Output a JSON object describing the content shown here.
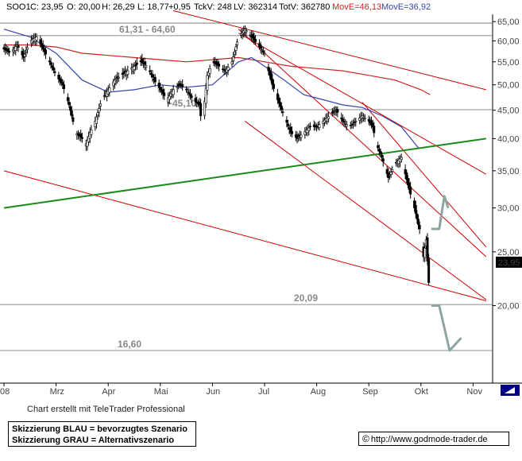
{
  "header": {
    "symbol": "SOO1",
    "close": "C: 23,95",
    "open": "O: 20,00",
    "high": "H: 26,29",
    "low": "L: 18,77",
    "change": "+0,95",
    "tickvol": "TckV: 248",
    "lastvol": "LV: 362314",
    "totvol": "TotV: 362780",
    "move_long": "MovE=46,13",
    "move_short": "MovE=36,92"
  },
  "credit": "Chart erstellt mit TeleTrader Professional",
  "legend": {
    "line1": "Skizzierung BLAU = bevorzugtes Szenario",
    "line2": "Skizzierung GRAU = Alternativszenario"
  },
  "url": "http://www.godmode-trader.de",
  "colors": {
    "up": "#ffffff",
    "down": "#000000",
    "grid": "#dddddd",
    "ma_long": "#cc2222",
    "ma_short": "#3344aa",
    "trend_red": "#cc0000",
    "trend_green": "#1a8a1a",
    "scenario_grey": "#8fa3a3",
    "price_tag": "#000000"
  },
  "chart_data": {
    "type": "candlestick",
    "title": "",
    "xlabel": "",
    "ylabel": "",
    "y_scale": "log",
    "ylim": [
      14.5,
      67
    ],
    "y_ticks": [
      20,
      25,
      30,
      35,
      40,
      45,
      50,
      55,
      60,
      65
    ],
    "y_tick_labels": [
      "20,00",
      "25,00",
      "30,00",
      "35,00",
      "40,00",
      "45,00",
      "50,00",
      "55,00",
      "60,00",
      "65,00"
    ],
    "x_labels": [
      "08",
      "Mrz",
      "Apr",
      "Mai",
      "Jun",
      "Jul",
      "Aug",
      "Sep",
      "Okt",
      "Nov"
    ],
    "x_label_day_index": [
      0,
      40,
      80,
      120,
      160,
      200,
      240,
      280,
      320,
      360
    ],
    "last_price_tag": "23,95",
    "last_price": 23.95,
    "levels": [
      {
        "label": "61,31 - 64,60",
        "value": 61.31
      },
      {
        "label": "",
        "value": 64.6
      },
      {
        "label": "~45,10",
        "value": 45.1
      },
      {
        "label": "20,09",
        "value": 20.09
      },
      {
        "label": "16,60",
        "value": 16.6
      }
    ],
    "close_path": [
      [
        0,
        58
      ],
      [
        5,
        57
      ],
      [
        10,
        59
      ],
      [
        15,
        56
      ],
      [
        20,
        60
      ],
      [
        25,
        61
      ],
      [
        30,
        58
      ],
      [
        35,
        55
      ],
      [
        40,
        52
      ],
      [
        45,
        50
      ],
      [
        50,
        46
      ],
      [
        55,
        41
      ],
      [
        60,
        40
      ],
      [
        62,
        38.5
      ],
      [
        66,
        41
      ],
      [
        70,
        43
      ],
      [
        75,
        47
      ],
      [
        80,
        49
      ],
      [
        85,
        51
      ],
      [
        90,
        52
      ],
      [
        95,
        53
      ],
      [
        100,
        54
      ],
      [
        105,
        55
      ],
      [
        110,
        54
      ],
      [
        115,
        51
      ],
      [
        120,
        49
      ],
      [
        125,
        47
      ],
      [
        130,
        49
      ],
      [
        135,
        50
      ],
      [
        140,
        49
      ],
      [
        145,
        47
      ],
      [
        150,
        46
      ],
      [
        152,
        42
      ],
      [
        156,
        52
      ],
      [
        160,
        55
      ],
      [
        165,
        54
      ],
      [
        170,
        53
      ],
      [
        175,
        55
      ],
      [
        180,
        61
      ],
      [
        185,
        63
      ],
      [
        190,
        61
      ],
      [
        195,
        59
      ],
      [
        200,
        57
      ],
      [
        203,
        53
      ],
      [
        206,
        50
      ],
      [
        210,
        47
      ],
      [
        215,
        44
      ],
      [
        220,
        41
      ],
      [
        225,
        40
      ],
      [
        230,
        41
      ],
      [
        235,
        42
      ],
      [
        240,
        42
      ],
      [
        245,
        43
      ],
      [
        250,
        44
      ],
      [
        255,
        45
      ],
      [
        260,
        43
      ],
      [
        265,
        42
      ],
      [
        270,
        43
      ],
      [
        275,
        44
      ],
      [
        280,
        43
      ],
      [
        283,
        42
      ],
      [
        286,
        39
      ],
      [
        290,
        37
      ],
      [
        295,
        34
      ],
      [
        300,
        36
      ],
      [
        305,
        37
      ],
      [
        310,
        33
      ],
      [
        315,
        30
      ],
      [
        318,
        28
      ],
      [
        320,
        27
      ],
      [
        322,
        24.5
      ],
      [
        324,
        26.3
      ],
      [
        326,
        22
      ],
      [
        327,
        20.5
      ],
      [
        328,
        23.95
      ]
    ],
    "series": [
      {
        "name": "MovE=46,13",
        "values": [
          [
            0,
            59
          ],
          [
            20,
            59
          ],
          [
            40,
            58.5
          ],
          [
            60,
            57
          ],
          [
            80,
            56.5
          ],
          [
            100,
            56
          ],
          [
            120,
            55.5
          ],
          [
            140,
            55
          ],
          [
            160,
            55.5
          ],
          [
            180,
            56
          ],
          [
            200,
            55
          ],
          [
            220,
            54
          ],
          [
            240,
            53.5
          ],
          [
            260,
            53
          ],
          [
            280,
            52
          ],
          [
            300,
            51
          ],
          [
            320,
            49
          ],
          [
            327,
            48
          ]
        ]
      },
      {
        "name": "MovE=36,92",
        "values": [
          [
            0,
            63
          ],
          [
            20,
            61
          ],
          [
            40,
            57
          ],
          [
            60,
            51
          ],
          [
            80,
            48.5
          ],
          [
            100,
            49
          ],
          [
            120,
            50
          ],
          [
            140,
            49.5
          ],
          [
            160,
            50
          ],
          [
            180,
            55
          ],
          [
            190,
            56
          ],
          [
            200,
            54
          ],
          [
            215,
            51
          ],
          [
            230,
            48
          ],
          [
            245,
            47
          ],
          [
            260,
            46
          ],
          [
            275,
            45.5
          ],
          [
            290,
            44
          ],
          [
            305,
            42
          ],
          [
            318,
            38.5
          ]
        ]
      }
    ],
    "trendlines": [
      {
        "color": "red",
        "from": [
          130,
          68
        ],
        "to": [
          370,
          49
        ]
      },
      {
        "color": "red",
        "from": [
          180,
          62
        ],
        "to": [
          370,
          34.5
        ]
      },
      {
        "color": "red",
        "from": [
          180,
          63
        ],
        "to": [
          370,
          24.5
        ]
      },
      {
        "color": "red",
        "from": [
          275,
          46.5
        ],
        "to": [
          370,
          25.5
        ]
      },
      {
        "color": "red",
        "from": [
          185,
          43
        ],
        "to": [
          370,
          20.5
        ]
      },
      {
        "color": "red",
        "from": [
          0,
          35
        ],
        "to": [
          370,
          20.4
        ]
      },
      {
        "color": "green",
        "from": [
          0,
          30
        ],
        "to": [
          370,
          40
        ]
      }
    ],
    "scenarios": [
      {
        "name": "blau",
        "points": [
          [
            328,
            27.5
          ],
          [
            334,
            27.5
          ],
          [
            338,
            31.5
          ],
          [
            341,
            30
          ]
        ]
      },
      {
        "name": "grau",
        "points": [
          [
            328,
            20
          ],
          [
            334,
            20
          ],
          [
            342,
            16.6
          ],
          [
            351,
            17.5
          ]
        ]
      }
    ]
  }
}
